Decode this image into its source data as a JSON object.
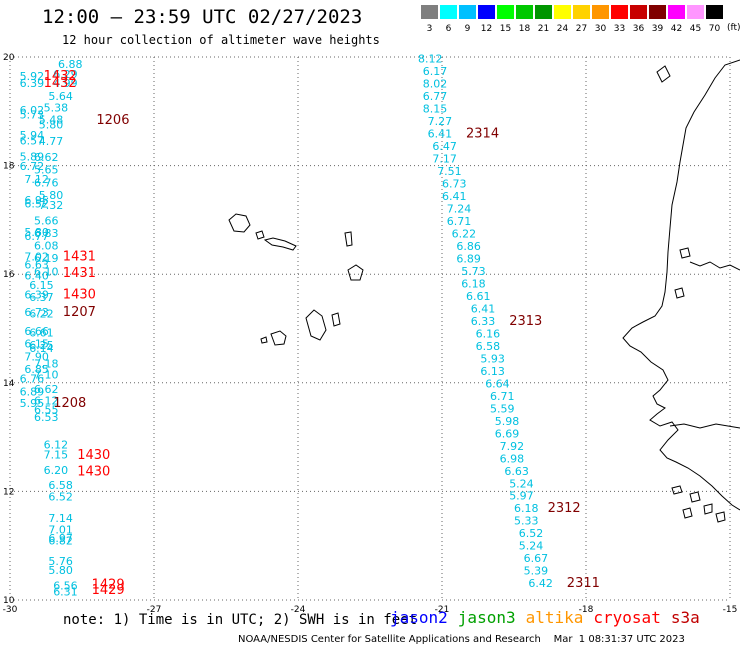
{
  "header": {
    "title": "12:00 – 23:59 UTC 02/27/2023",
    "subtitle": "12 hour collection of altimeter wave heights"
  },
  "legend": {
    "unit": "(ft)",
    "items": [
      {
        "color": "#7f7f7f",
        "label": "3"
      },
      {
        "color": "#00ffff",
        "label": "6"
      },
      {
        "color": "#00c0ff",
        "label": "9"
      },
      {
        "color": "#0000ff",
        "label": "12"
      },
      {
        "color": "#00ff00",
        "label": "15"
      },
      {
        "color": "#00c800",
        "label": "18"
      },
      {
        "color": "#009600",
        "label": "21"
      },
      {
        "color": "#ffff00",
        "label": "24"
      },
      {
        "color": "#ffd200",
        "label": "27"
      },
      {
        "color": "#ff9600",
        "label": "30"
      },
      {
        "color": "#ff0000",
        "label": "33"
      },
      {
        "color": "#c80000",
        "label": "36"
      },
      {
        "color": "#800000",
        "label": "39"
      },
      {
        "color": "#ff00ff",
        "label": "42"
      },
      {
        "color": "#ff96ff",
        "label": "45"
      },
      {
        "color": "#000000",
        "label": "70"
      }
    ]
  },
  "axes": {
    "lon_ticks": [
      "-30",
      "-27",
      "-24",
      "-21",
      "-18",
      "-15"
    ],
    "lat_ticks": [
      "20",
      "18",
      "16",
      "14",
      "12",
      "10"
    ]
  },
  "tracks": {
    "west": {
      "values": [
        {
          "v": "6.88",
          "lon": -29.0,
          "lat": 19.87
        },
        {
          "v": "5.92",
          "lon": -29.8,
          "lat": 19.65
        },
        {
          "v": "6.29",
          "lon": -29.1,
          "lat": 19.69
        },
        {
          "v": "6.39",
          "lon": -29.8,
          "lat": 19.52
        },
        {
          "v": "4.99",
          "lon": -29.1,
          "lat": 19.52
        },
        {
          "v": "5.64",
          "lon": -29.2,
          "lat": 19.28
        },
        {
          "v": "5.38",
          "lon": -29.3,
          "lat": 19.07
        },
        {
          "v": "6.02",
          "lon": -29.8,
          "lat": 19.02
        },
        {
          "v": "5.73",
          "lon": -29.8,
          "lat": 18.94
        },
        {
          "v": "5.48",
          "lon": -29.4,
          "lat": 18.85
        },
        {
          "v": "5.80",
          "lon": -29.4,
          "lat": 18.76
        },
        {
          "v": "5.94",
          "lon": -29.8,
          "lat": 18.56
        },
        {
          "v": "6.57",
          "lon": -29.8,
          "lat": 18.46
        },
        {
          "v": "4.77",
          "lon": -29.4,
          "lat": 18.45
        },
        {
          "v": "5.89",
          "lon": -29.8,
          "lat": 18.17
        },
        {
          "v": "6.62",
          "lon": -29.5,
          "lat": 18.16
        },
        {
          "v": "6.72",
          "lon": -29.8,
          "lat": 17.99
        },
        {
          "v": "5.65",
          "lon": -29.5,
          "lat": 17.93
        },
        {
          "v": "7.12",
          "lon": -29.7,
          "lat": 17.75
        },
        {
          "v": "6.76",
          "lon": -29.5,
          "lat": 17.69
        },
        {
          "v": "5.80",
          "lon": -29.4,
          "lat": 17.46
        },
        {
          "v": "6.95",
          "lon": -29.7,
          "lat": 17.37
        },
        {
          "v": "6.52",
          "lon": -29.7,
          "lat": 17.3
        },
        {
          "v": "7.32",
          "lon": -29.4,
          "lat": 17.27
        },
        {
          "v": "5.66",
          "lon": -29.5,
          "lat": 16.99
        },
        {
          "v": "5.80",
          "lon": -29.7,
          "lat": 16.78
        },
        {
          "v": "6.83",
          "lon": -29.5,
          "lat": 16.76
        },
        {
          "v": "6.77",
          "lon": -29.7,
          "lat": 16.7
        },
        {
          "v": "6.08",
          "lon": -29.5,
          "lat": 16.53
        },
        {
          "v": "7.02",
          "lon": -29.7,
          "lat": 16.33
        },
        {
          "v": "6.19",
          "lon": -29.5,
          "lat": 16.3
        },
        {
          "v": "6.63",
          "lon": -29.7,
          "lat": 16.18
        },
        {
          "v": "6.10",
          "lon": -29.5,
          "lat": 16.05
        },
        {
          "v": "6.40",
          "lon": -29.7,
          "lat": 15.98
        },
        {
          "v": "6.15",
          "lon": -29.6,
          "lat": 15.8
        },
        {
          "v": "6.39",
          "lon": -29.7,
          "lat": 15.63
        },
        {
          "v": "6.37",
          "lon": -29.6,
          "lat": 15.58
        },
        {
          "v": "6.73",
          "lon": -29.7,
          "lat": 15.3
        },
        {
          "v": "6.22",
          "lon": -29.6,
          "lat": 15.28
        },
        {
          "v": "6.66",
          "lon": -29.7,
          "lat": 14.95
        },
        {
          "v": "6.61",
          "lon": -29.6,
          "lat": 14.93
        },
        {
          "v": "6.15",
          "lon": -29.7,
          "lat": 14.72
        },
        {
          "v": "6.25",
          "lon": -29.6,
          "lat": 14.7
        },
        {
          "v": "6.14",
          "lon": -29.6,
          "lat": 14.64
        },
        {
          "v": "7.90",
          "lon": -29.7,
          "lat": 14.48
        },
        {
          "v": "7.18",
          "lon": -29.5,
          "lat": 14.36
        },
        {
          "v": "6.85",
          "lon": -29.7,
          "lat": 14.25
        },
        {
          "v": "7.10",
          "lon": -29.5,
          "lat": 14.15
        },
        {
          "v": "6.76",
          "lon": -29.8,
          "lat": 14.08
        },
        {
          "v": "6.62",
          "lon": -29.5,
          "lat": 13.89
        },
        {
          "v": "6.89",
          "lon": -29.8,
          "lat": 13.84
        },
        {
          "v": "6.12",
          "lon": -29.5,
          "lat": 13.67
        },
        {
          "v": "5.95",
          "lon": -29.8,
          "lat": 13.63
        },
        {
          "v": "6.55",
          "lon": -29.5,
          "lat": 13.51
        },
        {
          "v": "6.53",
          "lon": -29.5,
          "lat": 13.37
        },
        {
          "v": "6.12",
          "lon": -29.3,
          "lat": 12.86
        },
        {
          "v": "7.15",
          "lon": -29.3,
          "lat": 12.68
        },
        {
          "v": "6.20",
          "lon": -29.3,
          "lat": 12.39
        },
        {
          "v": "6.58",
          "lon": -29.2,
          "lat": 12.12
        },
        {
          "v": "6.52",
          "lon": -29.2,
          "lat": 11.91
        },
        {
          "v": "7.14",
          "lon": -29.2,
          "lat": 11.51
        },
        {
          "v": "7.01",
          "lon": -29.2,
          "lat": 11.3
        },
        {
          "v": "6.97",
          "lon": -29.2,
          "lat": 11.14
        },
        {
          "v": "6.82",
          "lon": -29.2,
          "lat": 11.1
        },
        {
          "v": "5.76",
          "lon": -29.2,
          "lat": 10.72
        },
        {
          "v": "5.80",
          "lon": -29.2,
          "lat": 10.55
        },
        {
          "v": "6.56",
          "lon": -29.1,
          "lat": 10.27
        },
        {
          "v": "6.31",
          "lon": -29.1,
          "lat": 10.16
        }
      ],
      "times": [
        {
          "t": "1432",
          "lon": -29.3,
          "lat": 19.65,
          "color": "#ff0000"
        },
        {
          "t": "1432",
          "lon": -29.3,
          "lat": 19.52,
          "color": "#ff0000"
        },
        {
          "t": "1206",
          "lon": -28.2,
          "lat": 18.84,
          "color": "#800000"
        },
        {
          "t": "1431",
          "lon": -28.9,
          "lat": 16.33,
          "color": "#ff0000"
        },
        {
          "t": "1431",
          "lon": -28.9,
          "lat": 16.02,
          "color": "#ff0000"
        },
        {
          "t": "1430",
          "lon": -28.9,
          "lat": 15.63,
          "color": "#ff0000"
        },
        {
          "t": "1207",
          "lon": -28.9,
          "lat": 15.3,
          "color": "#800000"
        },
        {
          "t": "1208",
          "lon": -29.1,
          "lat": 13.63,
          "color": "#800000"
        },
        {
          "t": "1430",
          "lon": -28.6,
          "lat": 12.67,
          "color": "#ff0000"
        },
        {
          "t": "1430",
          "lon": -28.6,
          "lat": 12.37,
          "color": "#ff0000"
        },
        {
          "t": "1429",
          "lon": -28.3,
          "lat": 10.29,
          "color": "#ff0000"
        },
        {
          "t": "1429",
          "lon": -28.3,
          "lat": 10.18,
          "color": "#ff0000"
        }
      ]
    },
    "east": {
      "values": [
        {
          "v": "8.12",
          "lon": -21.5,
          "lat": 19.97
        },
        {
          "v": "6.17",
          "lon": -21.4,
          "lat": 19.74
        },
        {
          "v": "8.02",
          "lon": -21.4,
          "lat": 19.51
        },
        {
          "v": "6.77",
          "lon": -21.4,
          "lat": 19.28
        },
        {
          "v": "8.15",
          "lon": -21.4,
          "lat": 19.05
        },
        {
          "v": "7.27",
          "lon": -21.3,
          "lat": 18.82
        },
        {
          "v": "6.41",
          "lon": -21.3,
          "lat": 18.59
        },
        {
          "v": "6.47",
          "lon": -21.2,
          "lat": 18.36
        },
        {
          "v": "7.17",
          "lon": -21.2,
          "lat": 18.13
        },
        {
          "v": "7.51",
          "lon": -21.1,
          "lat": 17.9
        },
        {
          "v": "6.73",
          "lon": -21.0,
          "lat": 17.67
        },
        {
          "v": "6.41",
          "lon": -21.0,
          "lat": 17.44
        },
        {
          "v": "7.24",
          "lon": -20.9,
          "lat": 17.21
        },
        {
          "v": "6.71",
          "lon": -20.9,
          "lat": 16.98
        },
        {
          "v": "6.22",
          "lon": -20.8,
          "lat": 16.75
        },
        {
          "v": "6.86",
          "lon": -20.7,
          "lat": 16.52
        },
        {
          "v": "6.89",
          "lon": -20.7,
          "lat": 16.29
        },
        {
          "v": "5.73",
          "lon": -20.6,
          "lat": 16.06
        },
        {
          "v": "6.18",
          "lon": -20.6,
          "lat": 15.83
        },
        {
          "v": "6.61",
          "lon": -20.5,
          "lat": 15.6
        },
        {
          "v": "6.41",
          "lon": -20.4,
          "lat": 15.37
        },
        {
          "v": "6.33",
          "lon": -20.4,
          "lat": 15.14
        },
        {
          "v": "6.16",
          "lon": -20.3,
          "lat": 14.91
        },
        {
          "v": "6.58",
          "lon": -20.3,
          "lat": 14.68
        },
        {
          "v": "5.93",
          "lon": -20.2,
          "lat": 14.45
        },
        {
          "v": "6.13",
          "lon": -20.2,
          "lat": 14.22
        },
        {
          "v": "6.64",
          "lon": -20.1,
          "lat": 13.99
        },
        {
          "v": "6.71",
          "lon": -20.0,
          "lat": 13.76
        },
        {
          "v": "5.59",
          "lon": -20.0,
          "lat": 13.53
        },
        {
          "v": "5.98",
          "lon": -19.9,
          "lat": 13.3
        },
        {
          "v": "6.69",
          "lon": -19.9,
          "lat": 13.07
        },
        {
          "v": "7.92",
          "lon": -19.8,
          "lat": 12.84
        },
        {
          "v": "6.98",
          "lon": -19.8,
          "lat": 12.61
        },
        {
          "v": "6.63",
          "lon": -19.7,
          "lat": 12.38
        },
        {
          "v": "5.24",
          "lon": -19.6,
          "lat": 12.15
        },
        {
          "v": "5.97",
          "lon": -19.6,
          "lat": 11.92
        },
        {
          "v": "6.18",
          "lon": -19.5,
          "lat": 11.69
        },
        {
          "v": "5.33",
          "lon": -19.5,
          "lat": 11.46
        },
        {
          "v": "6.52",
          "lon": -19.4,
          "lat": 11.23
        },
        {
          "v": "5.24",
          "lon": -19.4,
          "lat": 11.0
        },
        {
          "v": "6.67",
          "lon": -19.3,
          "lat": 10.77
        },
        {
          "v": "5.39",
          "lon": -19.3,
          "lat": 10.54
        },
        {
          "v": "6.42",
          "lon": -19.2,
          "lat": 10.31
        }
      ],
      "times": [
        {
          "t": "2314",
          "lon": -20.5,
          "lat": 18.59,
          "color": "#800000"
        },
        {
          "t": "2313",
          "lon": -19.6,
          "lat": 15.14,
          "color": "#800000"
        },
        {
          "t": "2312",
          "lon": -18.8,
          "lat": 11.69,
          "color": "#800000"
        },
        {
          "t": "2311",
          "lon": -18.4,
          "lat": 10.31,
          "color": "#800000"
        }
      ]
    }
  },
  "notes": "note: 1) Time is in UTC; 2) SWH is in feet",
  "satellites": [
    {
      "name": "jason2",
      "color": "#0000ff"
    },
    {
      "name": "jason3",
      "color": "#00a000"
    },
    {
      "name": "altika",
      "color": "#ff9600"
    },
    {
      "name": "cryosat",
      "color": "#ff0000"
    },
    {
      "name": "s3a",
      "color": "#c00000"
    }
  ],
  "credit": "NOAA/NESDIS Center for Satellite Applications and Research    Mar  1 08:31:37 UTC 2023"
}
